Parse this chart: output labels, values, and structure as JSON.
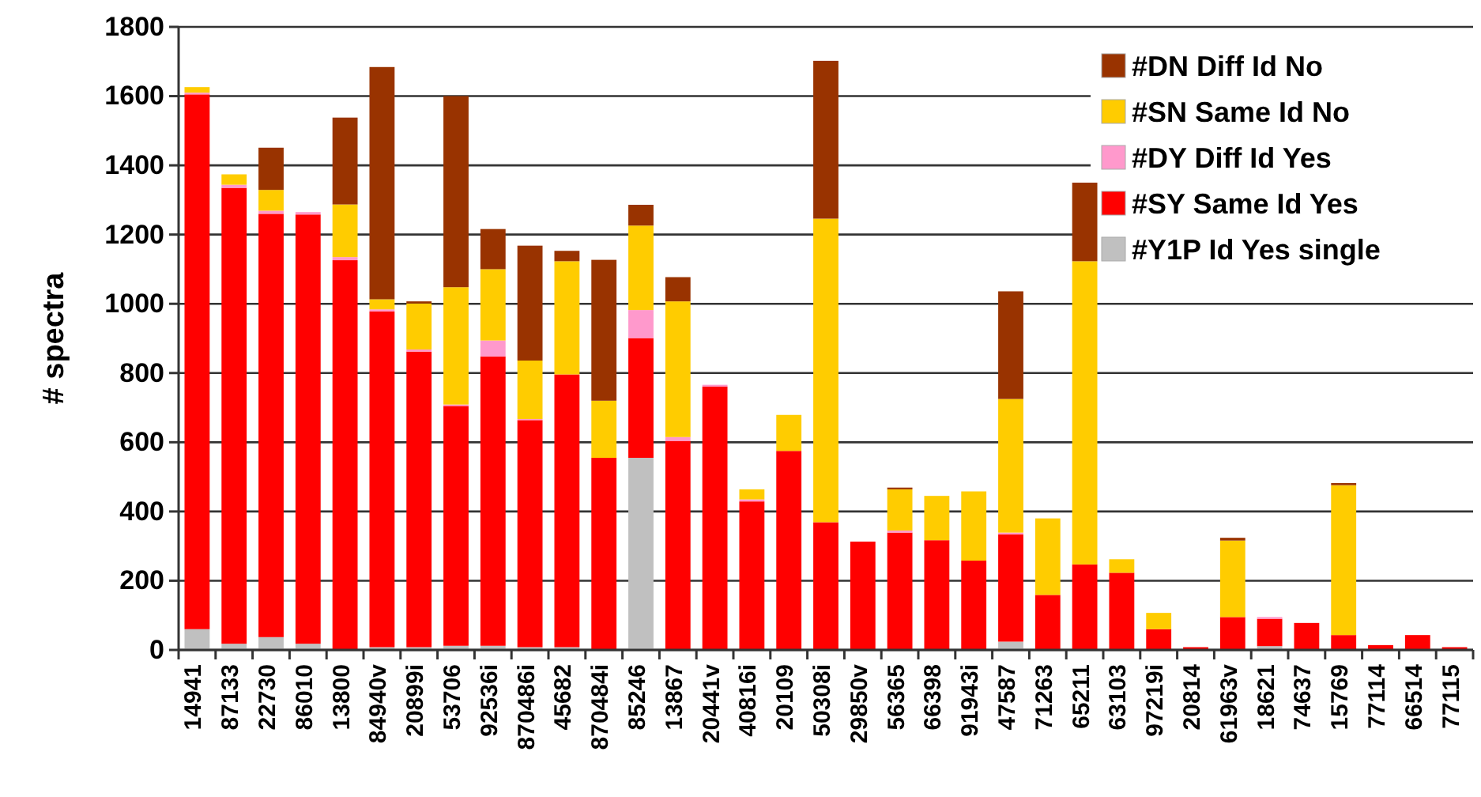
{
  "chart_data": {
    "type": "bar",
    "stacked": true,
    "ylabel": "# spectra",
    "categories": [
      "14941",
      "87133",
      "22730",
      "86010",
      "13800",
      "84940v",
      "20899i",
      "53706",
      "92536i",
      "870486i",
      "45682",
      "870484i",
      "85246",
      "13867",
      "20441v",
      "40816i",
      "20109",
      "50308i",
      "29850v",
      "56365",
      "66398",
      "91943i",
      "47587",
      "71263",
      "65211",
      "63103",
      "97219i",
      "20814",
      "61963v",
      "18621",
      "74637",
      "15769",
      "77114",
      "66514",
      "77115"
    ],
    "series": [
      {
        "name": "#Y1P Id Yes single",
        "color": "#c0c0c0",
        "values": [
          60,
          18,
          37,
          18,
          0,
          8,
          8,
          12,
          12,
          8,
          8,
          0,
          555,
          0,
          0,
          0,
          0,
          0,
          0,
          0,
          0,
          0,
          24,
          0,
          0,
          0,
          0,
          0,
          0,
          11,
          0,
          0,
          0,
          0,
          0
        ]
      },
      {
        "name": "#SY Same Id Yes",
        "color": "#ff0000",
        "values": [
          1545,
          1317,
          1223,
          1240,
          1126,
          970,
          854,
          693,
          836,
          656,
          788,
          555,
          346,
          604,
          761,
          429,
          575,
          369,
          313,
          339,
          317,
          258,
          310,
          159,
          247,
          223,
          60,
          8,
          95,
          79,
          78,
          43,
          14,
          43,
          8
        ]
      },
      {
        "name": "#DY Diff Id Yes",
        "color": "#ff99cc",
        "values": [
          5,
          9,
          9,
          7,
          9,
          6,
          6,
          4,
          46,
          3,
          0,
          0,
          81,
          11,
          5,
          6,
          0,
          0,
          0,
          6,
          0,
          0,
          5,
          0,
          0,
          0,
          0,
          0,
          0,
          5,
          0,
          0,
          0,
          0,
          0
        ]
      },
      {
        "name": "#SN Same Id No",
        "color": "#ffcc00",
        "values": [
          16,
          30,
          60,
          0,
          152,
          29,
          133,
          339,
          206,
          169,
          327,
          165,
          244,
          392,
          0,
          29,
          104,
          877,
          0,
          119,
          128,
          200,
          386,
          221,
          876,
          39,
          47,
          0,
          221,
          0,
          0,
          433,
          0,
          0,
          0
        ]
      },
      {
        "name": "#DN Diff Id No",
        "color": "#993300",
        "values": [
          0,
          0,
          122,
          0,
          251,
          671,
          6,
          552,
          116,
          332,
          30,
          407,
          60,
          70,
          0,
          0,
          0,
          456,
          0,
          5,
          0,
          0,
          311,
          0,
          227,
          0,
          0,
          0,
          8,
          0,
          0,
          6,
          0,
          0,
          0
        ]
      }
    ],
    "ylim": [
      0,
      1800
    ],
    "yticks": [
      0,
      200,
      400,
      600,
      800,
      1000,
      1200,
      1400,
      1600,
      1800
    ],
    "grid": "y",
    "legend": "top right"
  }
}
